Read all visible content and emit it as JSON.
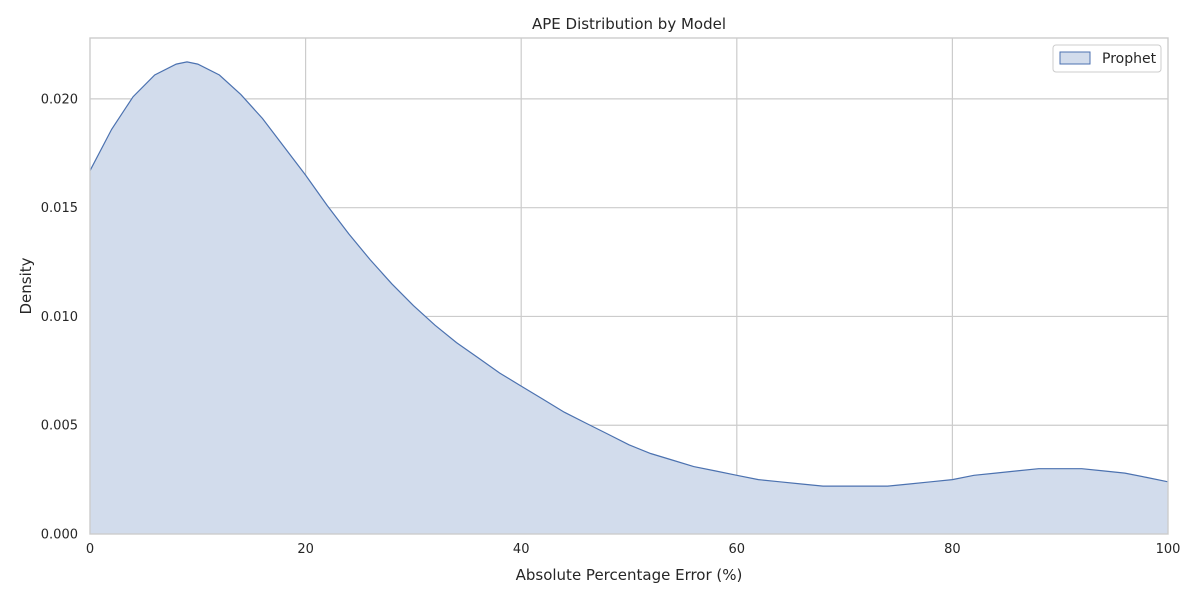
{
  "chart_data": {
    "type": "area",
    "title": "APE Distribution by Model",
    "xlabel": "Absolute Percentage Error (%)",
    "ylabel": "Density",
    "xlim": [
      0,
      100
    ],
    "ylim": [
      0,
      0.0228
    ],
    "x_ticks": [
      0,
      20,
      40,
      60,
      80,
      100
    ],
    "x_tick_labels": [
      "0",
      "20",
      "40",
      "60",
      "80",
      "100"
    ],
    "y_ticks": [
      0,
      0.005,
      0.01,
      0.015,
      0.02
    ],
    "y_tick_labels": [
      "0.000",
      "0.005",
      "0.010",
      "0.015",
      "0.020"
    ],
    "grid": true,
    "legend_position": "top-right",
    "series": [
      {
        "name": "Prophet",
        "fill_color": "#d2dcec",
        "line_color": "#4c72b0",
        "x": [
          0,
          2,
          4,
          6,
          8,
          9,
          10,
          12,
          14,
          16,
          18,
          20,
          22,
          24,
          26,
          28,
          30,
          32,
          34,
          36,
          38,
          40,
          42,
          44,
          46,
          48,
          50,
          52,
          54,
          56,
          58,
          60,
          62,
          64,
          66,
          68,
          70,
          72,
          74,
          76,
          78,
          80,
          82,
          84,
          86,
          88,
          90,
          92,
          94,
          96,
          98,
          100
        ],
        "y": [
          0.0167,
          0.0186,
          0.0201,
          0.0211,
          0.0216,
          0.0217,
          0.0216,
          0.0211,
          0.0202,
          0.0191,
          0.0178,
          0.0165,
          0.0151,
          0.0138,
          0.0126,
          0.0115,
          0.0105,
          0.0096,
          0.0088,
          0.0081,
          0.0074,
          0.0068,
          0.0062,
          0.0056,
          0.0051,
          0.0046,
          0.0041,
          0.0037,
          0.0034,
          0.0031,
          0.0029,
          0.0027,
          0.0025,
          0.0024,
          0.0023,
          0.0022,
          0.0022,
          0.0022,
          0.0022,
          0.0023,
          0.0024,
          0.0025,
          0.0027,
          0.0028,
          0.0029,
          0.003,
          0.003,
          0.003,
          0.0029,
          0.0028,
          0.0026,
          0.0024
        ]
      }
    ]
  }
}
